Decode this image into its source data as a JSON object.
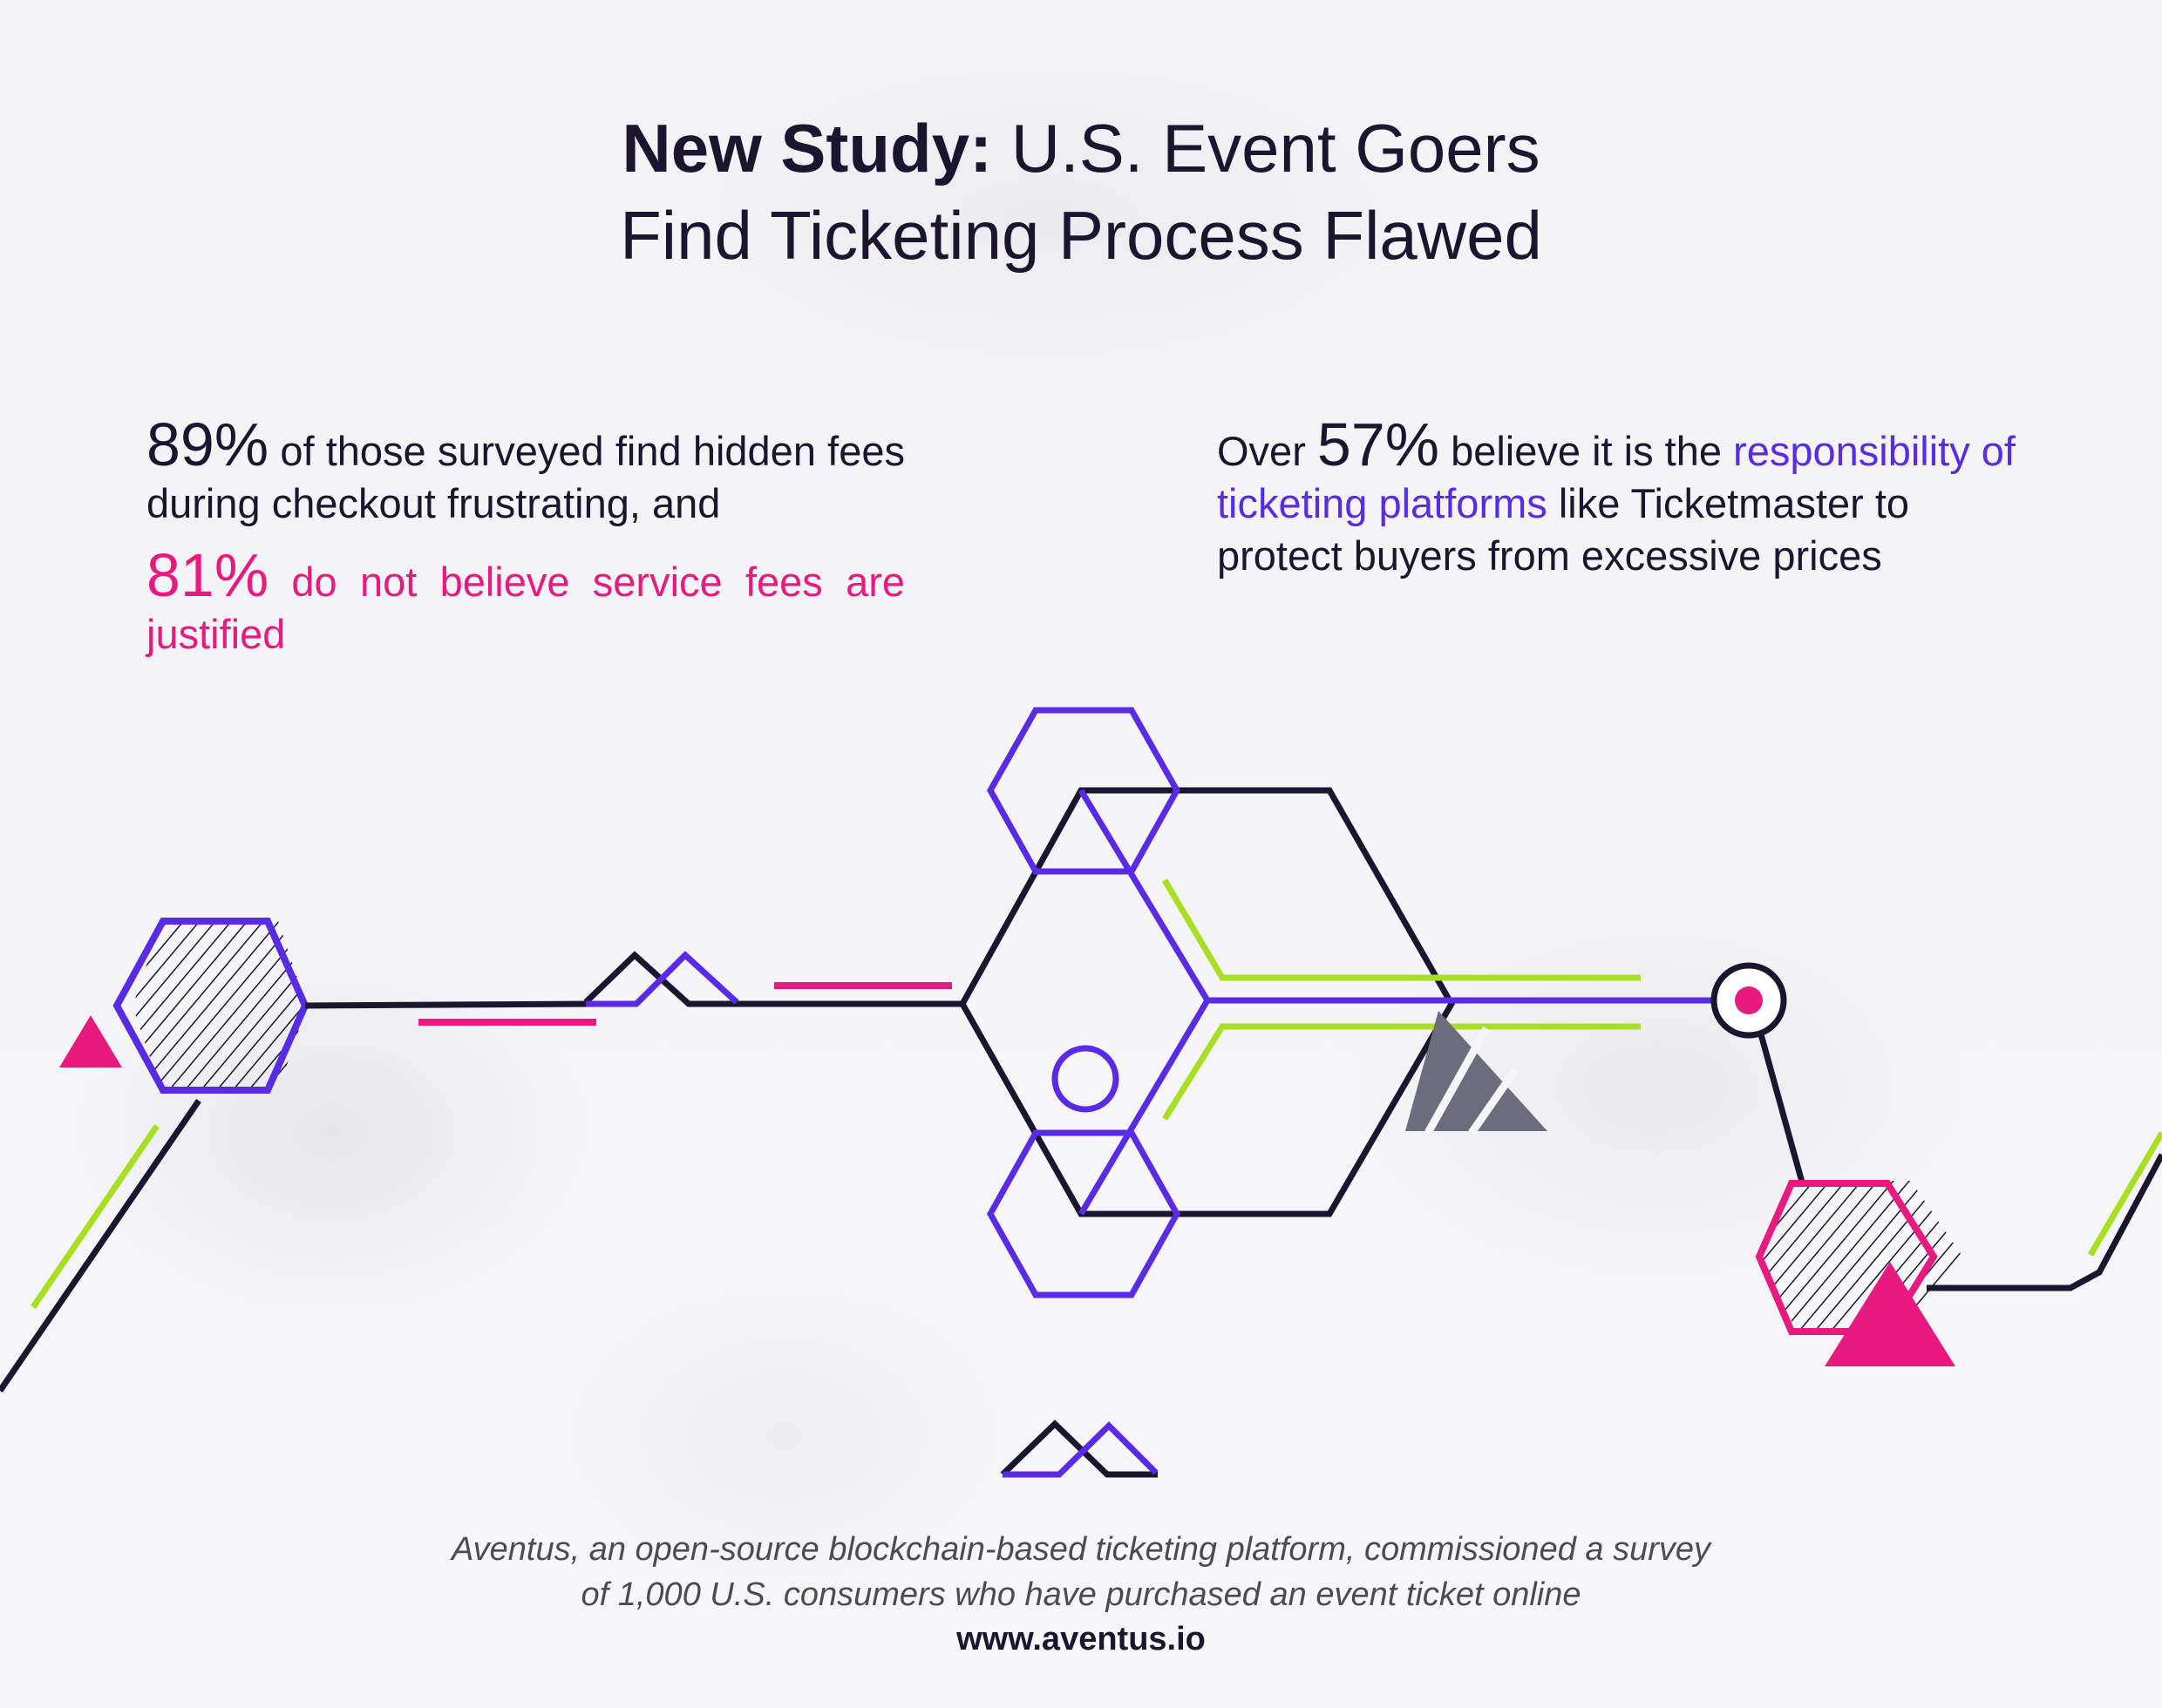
{
  "title": {
    "bold": "New Study:",
    "line1_rest": " U.S. Event Goers",
    "line2": "Find Ticketing Process Flawed"
  },
  "stat_left": {
    "value1": "89%",
    "text1": " of those surveyed find hidden fees during checkout frustrating, and",
    "value2": "81%",
    "text2": " do not believe service fees are justified"
  },
  "stat_right": {
    "prefix": "Over ",
    "value": "57%",
    "text1": " believe it is the ",
    "highlight": "responsibility of ticketing platforms",
    "text2": " like Ticketmaster to protect buyers from excessive prices"
  },
  "footer": {
    "line1": "Aventus, an open-source blockchain-based ticketing platform, commissioned a survey",
    "line2": "of 1,000 U.S. consumers who have purchased an event ticket online",
    "url": "www.aventus.io"
  },
  "colors": {
    "dark": "#1c1530",
    "purple": "#5a2be6",
    "magenta": "#e8197f",
    "lime": "#a6e021",
    "gray": "#6c6c7c"
  }
}
